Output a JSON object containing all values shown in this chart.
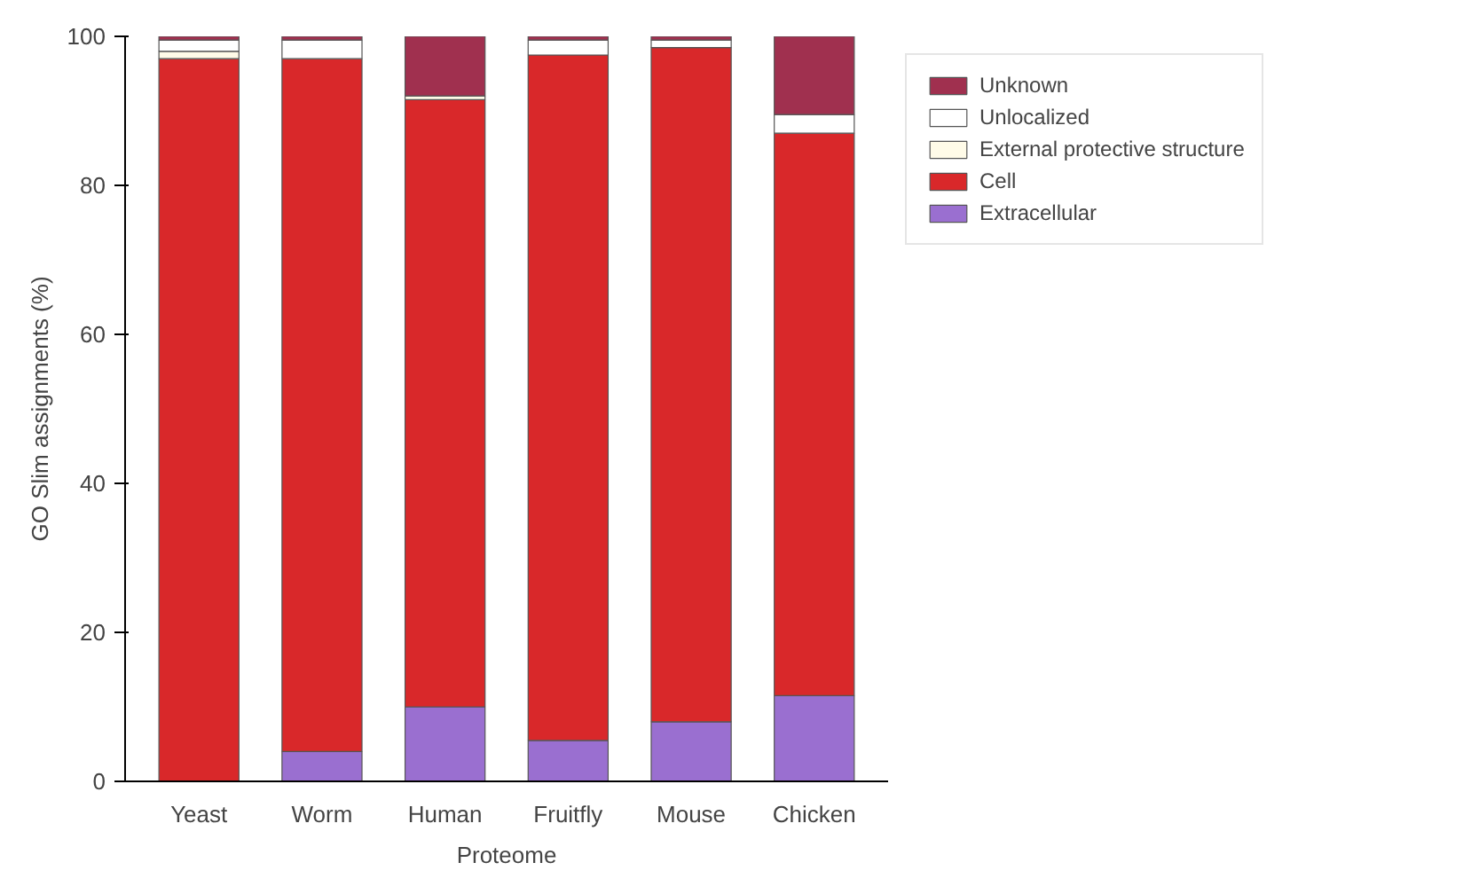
{
  "chart_data": {
    "type": "bar",
    "stacked": true,
    "xlabel": "Proteome",
    "ylabel": "GO Slim assignments (%)",
    "categories": [
      "Yeast",
      "Worm",
      "Human",
      "Fruitfly",
      "Mouse",
      "Chicken"
    ],
    "series": [
      {
        "name": "Extracellular",
        "color": "#9a6fd0",
        "values": [
          0,
          4,
          10,
          5.5,
          8,
          11.5
        ]
      },
      {
        "name": "Cell",
        "color": "#d9282a",
        "values": [
          97,
          93,
          81.5,
          92,
          90.5,
          75.5
        ]
      },
      {
        "name": "External protective structure",
        "color": "#fffbe8",
        "values": [
          1,
          0,
          0.5,
          0,
          0,
          0
        ]
      },
      {
        "name": "Unlocalized",
        "color": "#ffffff",
        "values": [
          1.5,
          2.5,
          0,
          2,
          1,
          2.5
        ]
      },
      {
        "name": "Unknown",
        "color": "#a0304f",
        "values": [
          0.5,
          0.5,
          8,
          0.5,
          0.5,
          10.5
        ]
      }
    ],
    "ylim": [
      0,
      100
    ],
    "yticks": [
      0,
      20,
      40,
      60,
      80,
      100
    ],
    "grid": false,
    "legend": "top right"
  }
}
